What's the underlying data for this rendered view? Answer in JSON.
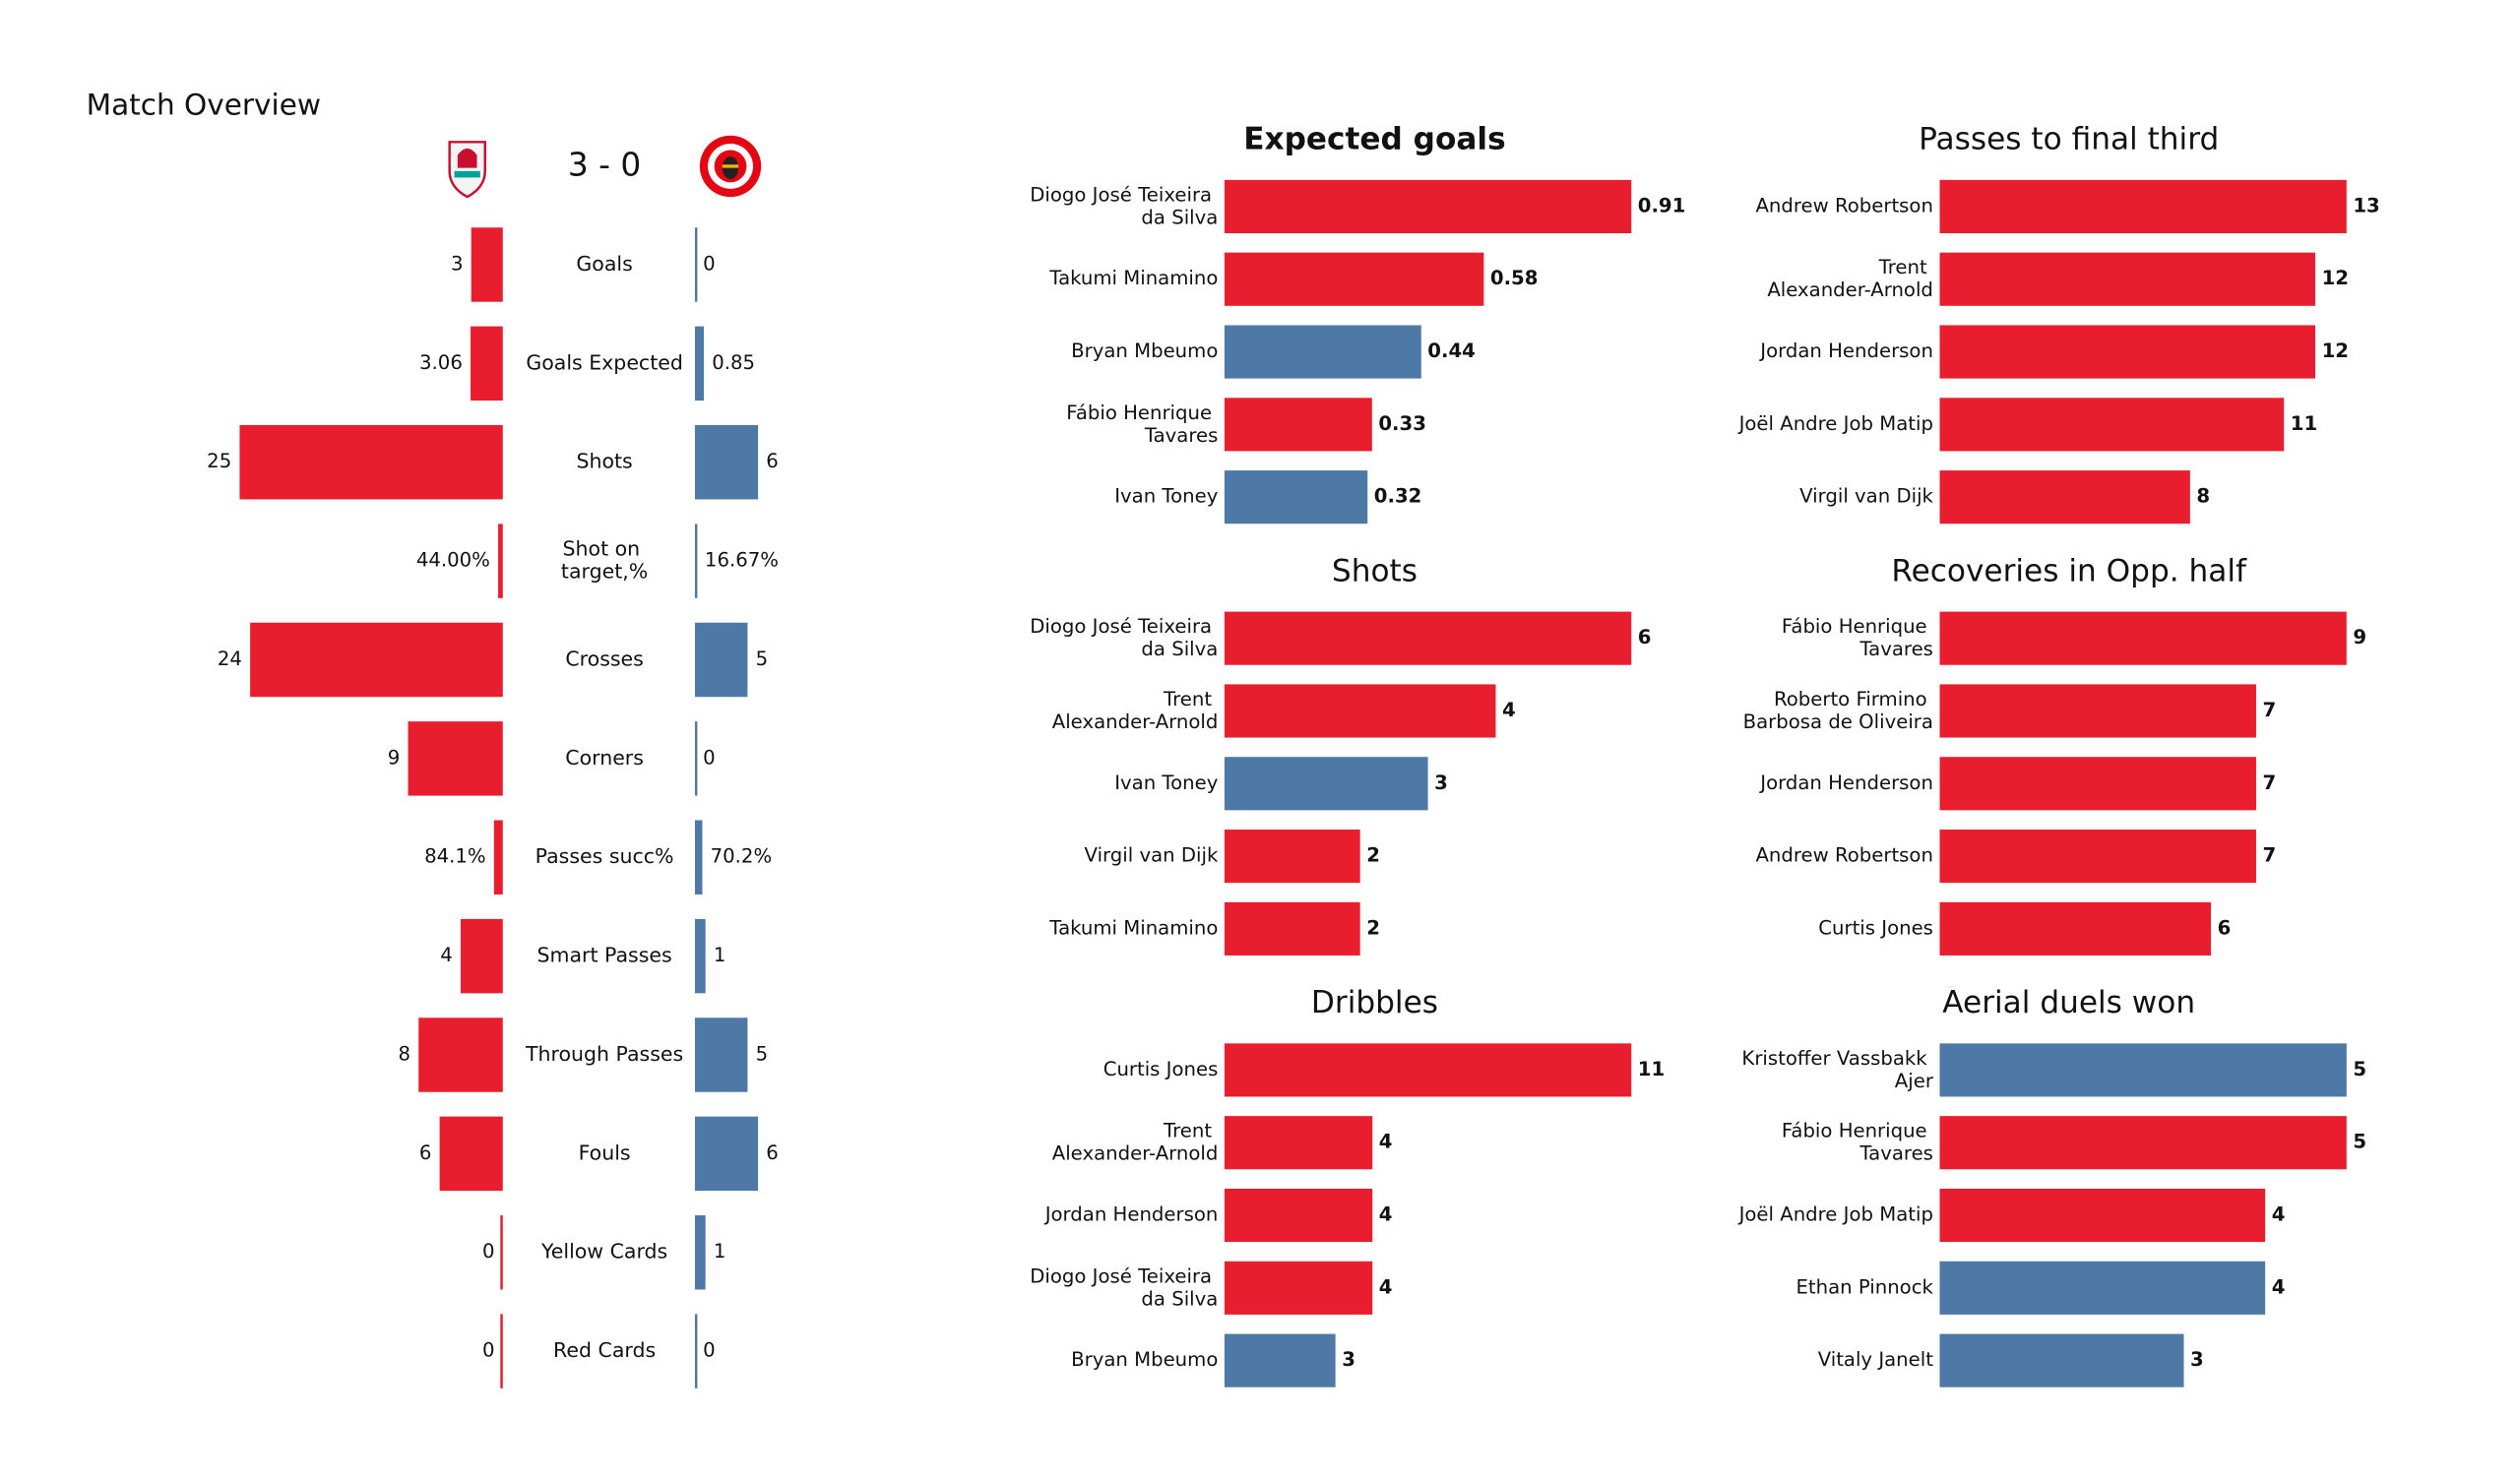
{
  "chart_data": [
    {
      "type": "butterfly",
      "title": "Match Overview",
      "score": "3 - 0",
      "categories": [
        "Goals",
        "Goals Expected",
        "Shots",
        "Shot on target,%",
        "Crosses",
        "Corners",
        "Passes succ%",
        "Smart Passes",
        "Through Passes",
        "Fouls",
        "Yellow Cards",
        "Red Cards"
      ],
      "series": [
        {
          "color": "#e81e2e",
          "values": [
            3,
            3.06,
            25,
            0.44,
            24,
            9,
            0.841,
            4,
            8,
            6,
            0,
            0
          ],
          "value_labels": [
            "3",
            "3.06",
            "25",
            "44.00%",
            "24",
            "9",
            "84.1%",
            "4",
            "8",
            "6",
            "0",
            "0"
          ]
        },
        {
          "color": "#4e79a7",
          "values": [
            0,
            0.85,
            6,
            0.1667,
            5,
            0,
            0.702,
            1,
            5,
            6,
            1,
            0
          ],
          "value_labels": [
            "0",
            "0.85",
            "6",
            "16.67%",
            "5",
            "0",
            "70.2%",
            "1",
            "5",
            "6",
            "1",
            "0"
          ]
        }
      ]
    },
    {
      "type": "bar",
      "orientation": "horizontal",
      "title": "Expected goals",
      "title_weight": "bold",
      "categories": [
        "Diogo José Teixeira da Silva",
        "Takumi Minamino",
        "Bryan Mbeumo",
        "Fábio Henrique Tavares",
        "Ivan Toney"
      ],
      "values": [
        0.91,
        0.58,
        0.44,
        0.33,
        0.32
      ],
      "colors": [
        "#e81e2e",
        "#e81e2e",
        "#4e79a7",
        "#e81e2e",
        "#4e79a7"
      ]
    },
    {
      "type": "bar",
      "orientation": "horizontal",
      "title": "Passes to final third",
      "title_weight": "normal",
      "categories": [
        "Andrew Robertson",
        "Trent Alexander-Arnold",
        "Jordan Henderson",
        "Joël Andre Job Matip",
        "Virgil van Dijk"
      ],
      "values": [
        13,
        12,
        12,
        11,
        8
      ],
      "colors": [
        "#e81e2e",
        "#e81e2e",
        "#e81e2e",
        "#e81e2e",
        "#e81e2e"
      ]
    },
    {
      "type": "bar",
      "orientation": "horizontal",
      "title": "Shots",
      "title_weight": "normal",
      "categories": [
        "Diogo José Teixeira da Silva",
        "Trent Alexander-Arnold",
        "Ivan Toney",
        "Virgil van Dijk",
        "Takumi Minamino"
      ],
      "values": [
        6,
        4,
        3,
        2,
        2
      ],
      "colors": [
        "#e81e2e",
        "#e81e2e",
        "#4e79a7",
        "#e81e2e",
        "#e81e2e"
      ]
    },
    {
      "type": "bar",
      "orientation": "horizontal",
      "title": "Recoveries in Opp. half",
      "title_weight": "normal",
      "categories": [
        "Fábio Henrique Tavares",
        "Roberto Firmino Barbosa de Oliveira",
        "Jordan Henderson",
        "Andrew Robertson",
        "Curtis Jones"
      ],
      "values": [
        9,
        7,
        7,
        7,
        6
      ],
      "colors": [
        "#e81e2e",
        "#e81e2e",
        "#e81e2e",
        "#e81e2e",
        "#e81e2e"
      ]
    },
    {
      "type": "bar",
      "orientation": "horizontal",
      "title": "Dribbles",
      "title_weight": "normal",
      "categories": [
        "Curtis Jones",
        "Trent Alexander-Arnold",
        "Jordan Henderson",
        "Diogo José Teixeira da Silva",
        "Bryan Mbeumo"
      ],
      "values": [
        11,
        4,
        4,
        4,
        3
      ],
      "colors": [
        "#e81e2e",
        "#e81e2e",
        "#e81e2e",
        "#e81e2e",
        "#4e79a7"
      ]
    },
    {
      "type": "bar",
      "orientation": "horizontal",
      "title": "Aerial duels won",
      "title_weight": "normal",
      "categories": [
        "Kristoffer Vassbakk Ajer",
        "Fábio Henrique Tavares",
        "Joël Andre Job Matip",
        "Ethan Pinnock",
        "Vitaly Janelt"
      ],
      "values": [
        5,
        5,
        4,
        4,
        3
      ],
      "colors": [
        "#4e79a7",
        "#e81e2e",
        "#e81e2e",
        "#4e79a7",
        "#4e79a7"
      ]
    }
  ]
}
